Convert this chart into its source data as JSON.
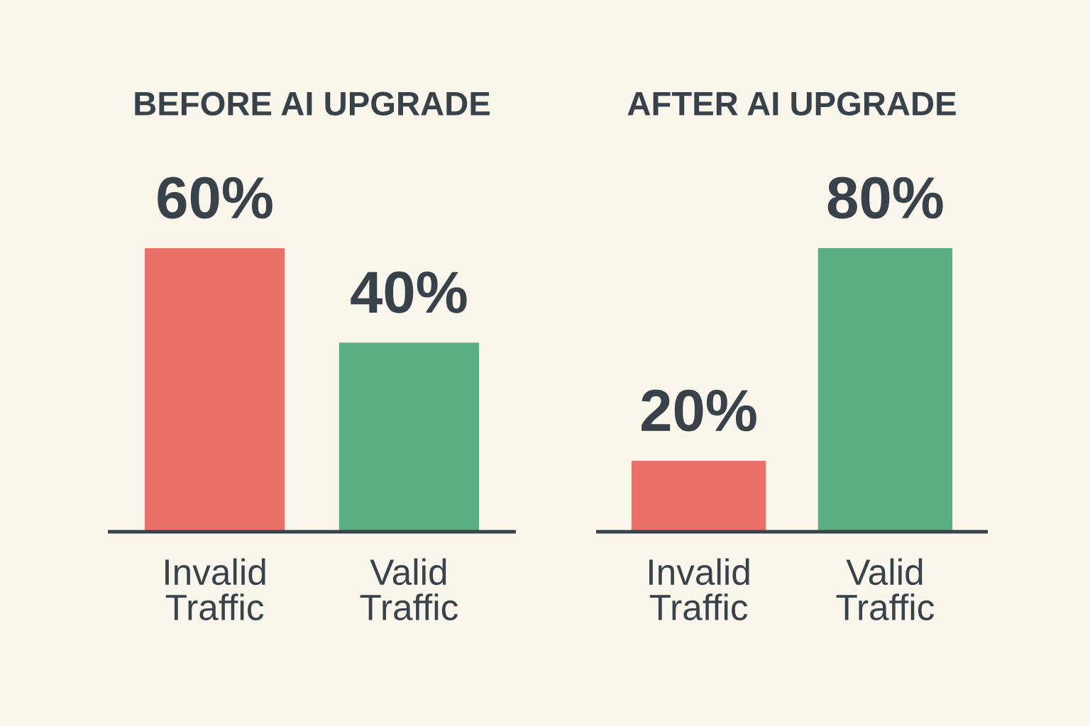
{
  "chart_data": [
    {
      "type": "bar",
      "title": "BEFORE AI UPGRADE",
      "categories": [
        "Invalid\nTraffic",
        "Valid\nTraffic"
      ],
      "values": [
        60,
        40
      ],
      "colors": [
        "#ea7068",
        "#5bae7f"
      ],
      "value_labels": [
        "60%",
        "40%"
      ],
      "tick_labels": "x"
    },
    {
      "type": "bar",
      "title": "AFTER AI UPGRADE",
      "categories": [
        "Invalid\nTraffic",
        "Valid\nTraffic"
      ],
      "values": [
        20,
        80
      ],
      "colors": [
        "#ea7068",
        "#5bae7f"
      ],
      "value_labels": [
        "20%",
        "80%"
      ],
      "tick_labels": "x"
    }
  ]
}
